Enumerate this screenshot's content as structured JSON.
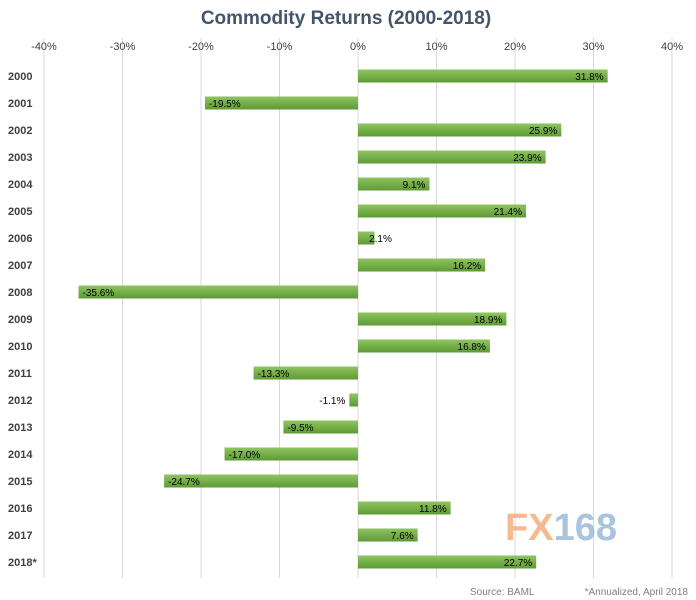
{
  "chart_data": {
    "type": "bar",
    "orientation": "horizontal",
    "title": "Commodity Returns (2000-2018)",
    "categories": [
      "2000",
      "2001",
      "2002",
      "2003",
      "2004",
      "2005",
      "2006",
      "2007",
      "2008",
      "2009",
      "2010",
      "2011",
      "2012",
      "2013",
      "2014",
      "2015",
      "2016",
      "2017",
      "2018*"
    ],
    "values": [
      31.8,
      -19.5,
      25.9,
      23.9,
      9.1,
      21.4,
      2.1,
      16.2,
      -35.6,
      18.9,
      16.8,
      -13.3,
      -1.1,
      -9.5,
      -17.0,
      -24.7,
      11.8,
      7.6,
      22.7
    ],
    "data_labels": [
      "31.8%",
      "-19.5%",
      "25.9%",
      "23.9%",
      "9.1%",
      "21.4%",
      "2.1%",
      "16.2%",
      "-35.6%",
      "18.9%",
      "16.8%",
      "-13.3%",
      "-1.1%",
      "-9.5%",
      "-17.0%",
      "-24.7%",
      "11.8%",
      "7.6%",
      "22.7%"
    ],
    "xlim": [
      -40,
      40
    ],
    "x_ticks": [
      -40,
      -30,
      -20,
      -10,
      0,
      10,
      20,
      30,
      40
    ],
    "x_tick_labels": [
      "-40%",
      "-30%",
      "-20%",
      "-10%",
      "0%",
      "10%",
      "20%",
      "30%",
      "40%"
    ],
    "x_axis_position": "top",
    "grid": true,
    "bar_color": "#70ad47",
    "source": "Source: BAML",
    "footnote": "*Annualized, April 2018",
    "watermark": {
      "fx": "FX",
      "num": "168"
    }
  },
  "colors": {
    "title": "#44546a",
    "bar_light": "#8fc461",
    "bar_dark": "#5e9a34",
    "grid": "#d9d9d9",
    "watermark_fx": "#f2a36b",
    "watermark_num": "#8fb1d4"
  }
}
